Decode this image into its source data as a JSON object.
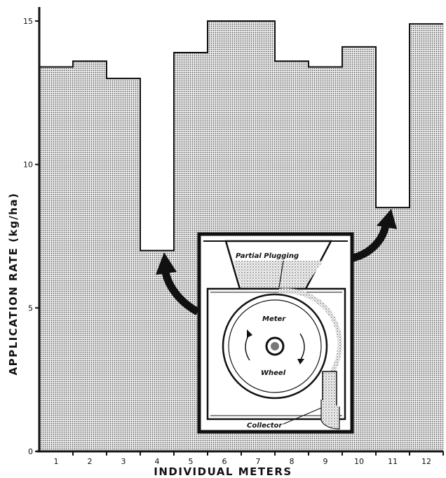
{
  "chart_data": {
    "type": "bar",
    "title": "",
    "xlabel": "INDIVIDUAL METERS",
    "ylabel": "APPLICATION RATE (kg/ha)",
    "categories": [
      "1",
      "2",
      "3",
      "4",
      "5",
      "6",
      "7",
      "8",
      "9",
      "10",
      "11",
      "12"
    ],
    "values": [
      13.4,
      13.6,
      13.0,
      7.0,
      13.9,
      15.0,
      15.0,
      13.6,
      13.4,
      14.1,
      8.5,
      14.9
    ],
    "ylim": [
      0,
      15
    ],
    "yticks": [
      "0",
      "5",
      "10",
      "15"
    ],
    "grid": false,
    "bar_fill": "stippled gray",
    "colors": {
      "bar": "#c9c9c9",
      "ink": "#111111"
    }
  },
  "inset": {
    "labels": {
      "partial_plugging": "Partial Plugging",
      "meter": "Meter",
      "wheel": "Wheel",
      "collector": "Collector"
    }
  }
}
